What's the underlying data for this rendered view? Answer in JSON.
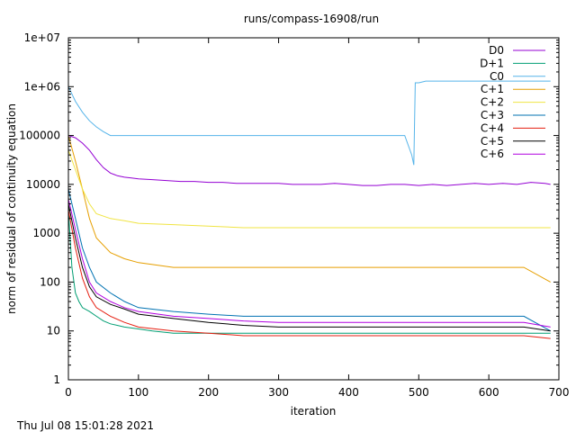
{
  "footer": {
    "timestamp": "Thu Jul 08 15:01:28 2021"
  },
  "chart_data": {
    "type": "line",
    "title": "runs/compass-16908/run",
    "xlabel": "iteration",
    "ylabel": "norm of residual of continuity equation",
    "xlim": [
      0,
      700
    ],
    "ylim": [
      1,
      10000000
    ],
    "yscale": "log",
    "grid": false,
    "legend_position": "top-right",
    "x_ticks": [
      0,
      100,
      200,
      300,
      400,
      500,
      600,
      700
    ],
    "x_tick_labels": [
      "0",
      "100",
      "200",
      "300",
      "400",
      "500",
      "600",
      "700"
    ],
    "y_ticks": [
      1,
      10,
      100,
      1000,
      10000,
      100000,
      1000000,
      10000000
    ],
    "y_tick_labels": [
      "1",
      "10",
      "100",
      "1000",
      "10000",
      "100000",
      "1e+06",
      "1e+07"
    ],
    "series": [
      {
        "name": "D0",
        "color": "#9400d3",
        "x": [
          0,
          10,
          20,
          30,
          40,
          50,
          60,
          70,
          80,
          90,
          100,
          120,
          140,
          160,
          180,
          200,
          220,
          240,
          260,
          280,
          300,
          320,
          340,
          360,
          380,
          400,
          420,
          440,
          460,
          480,
          500,
          520,
          540,
          560,
          580,
          600,
          620,
          640,
          660,
          680,
          688
        ],
        "y": [
          100000,
          90000,
          70000,
          50000,
          32000,
          22000,
          17000,
          15000,
          14000,
          13500,
          13000,
          12500,
          12000,
          11500,
          11500,
          11000,
          11000,
          10500,
          10500,
          10500,
          10500,
          10000,
          10000,
          10000,
          10500,
          10000,
          9500,
          9500,
          10000,
          10000,
          9500,
          10000,
          9500,
          10000,
          10500,
          10000,
          10500,
          10000,
          11000,
          10500,
          10000
        ]
      },
      {
        "name": "D+1",
        "color": "#009e73",
        "x": [
          0,
          5,
          10,
          15,
          20,
          30,
          40,
          50,
          60,
          80,
          100,
          120,
          150,
          200,
          250,
          300,
          350,
          400,
          450,
          500,
          550,
          600,
          650,
          688
        ],
        "y": [
          3000,
          200,
          60,
          40,
          30,
          25,
          20,
          16,
          14,
          12,
          11,
          10,
          9,
          9,
          9,
          9,
          9,
          9,
          9,
          9,
          9,
          9,
          9,
          9
        ]
      },
      {
        "name": "C0",
        "color": "#56b4e9",
        "x": [
          0,
          10,
          20,
          30,
          40,
          50,
          60,
          80,
          100,
          150,
          200,
          250,
          300,
          350,
          400,
          450,
          480,
          490,
          493,
          495,
          500,
          510,
          550,
          600,
          650,
          688
        ],
        "y": [
          1000000,
          500000,
          300000,
          200000,
          150000,
          120000,
          100000,
          100000,
          100000,
          100000,
          100000,
          100000,
          100000,
          100000,
          100000,
          100000,
          100000,
          40000,
          25000,
          1200000,
          1200000,
          1300000,
          1300000,
          1300000,
          1300000,
          1300000
        ]
      },
      {
        "name": "C+1",
        "color": "#e69f00",
        "x": [
          0,
          10,
          20,
          30,
          40,
          60,
          80,
          100,
          150,
          200,
          250,
          300,
          350,
          400,
          450,
          500,
          550,
          600,
          650,
          688
        ],
        "y": [
          100000,
          30000,
          8000,
          2000,
          800,
          400,
          300,
          250,
          200,
          200,
          200,
          200,
          200,
          200,
          200,
          200,
          200,
          200,
          200,
          100
        ]
      },
      {
        "name": "C+2",
        "color": "#f0e442",
        "x": [
          0,
          10,
          20,
          30,
          40,
          60,
          80,
          100,
          150,
          200,
          250,
          300,
          350,
          400,
          450,
          500,
          550,
          600,
          650,
          688
        ],
        "y": [
          50000,
          20000,
          8000,
          4000,
          2500,
          2000,
          1800,
          1600,
          1500,
          1400,
          1300,
          1300,
          1300,
          1300,
          1300,
          1300,
          1300,
          1300,
          1300,
          1300
        ]
      },
      {
        "name": "C+3",
        "color": "#0072b2",
        "x": [
          0,
          10,
          20,
          30,
          40,
          60,
          80,
          100,
          150,
          200,
          250,
          300,
          350,
          400,
          450,
          500,
          550,
          600,
          650,
          688
        ],
        "y": [
          8000,
          2000,
          500,
          200,
          100,
          60,
          40,
          30,
          25,
          22,
          20,
          20,
          20,
          20,
          20,
          20,
          20,
          20,
          20,
          10
        ]
      },
      {
        "name": "C+4",
        "color": "#e51e10",
        "x": [
          0,
          10,
          20,
          30,
          40,
          60,
          80,
          100,
          150,
          200,
          250,
          300,
          350,
          400,
          450,
          500,
          550,
          600,
          650,
          688
        ],
        "y": [
          3000,
          500,
          120,
          50,
          30,
          20,
          15,
          12,
          10,
          9,
          8,
          8,
          8,
          8,
          8,
          8,
          8,
          8,
          8,
          7
        ]
      },
      {
        "name": "C+5",
        "color": "#000000",
        "x": [
          0,
          10,
          20,
          30,
          40,
          60,
          80,
          100,
          150,
          200,
          250,
          300,
          350,
          400,
          450,
          500,
          550,
          600,
          650,
          688
        ],
        "y": [
          4000,
          800,
          200,
          80,
          50,
          35,
          28,
          22,
          18,
          15,
          13,
          12,
          12,
          12,
          12,
          12,
          12,
          12,
          12,
          10
        ]
      },
      {
        "name": "C+6",
        "color": "#b100e0",
        "x": [
          0,
          10,
          20,
          30,
          40,
          60,
          80,
          100,
          150,
          200,
          250,
          300,
          350,
          400,
          450,
          500,
          550,
          600,
          650,
          688
        ],
        "y": [
          5000,
          1200,
          300,
          100,
          60,
          40,
          30,
          25,
          20,
          18,
          16,
          15,
          15,
          15,
          15,
          15,
          15,
          15,
          15,
          12
        ]
      }
    ]
  }
}
